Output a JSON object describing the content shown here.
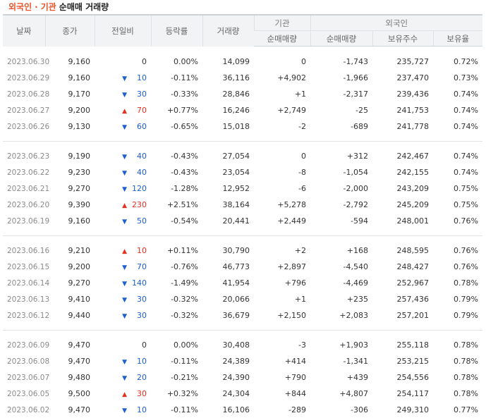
{
  "title": {
    "accent_1": "외국인",
    "separator": "·",
    "accent_2": "기관",
    "main": "순매매 거래량"
  },
  "headers": {
    "date": "날짜",
    "close": "종가",
    "change": "전일비",
    "rate": "등락률",
    "volume": "거래량",
    "institution_group": "기관",
    "foreign_group": "외국인",
    "inst_net": "순매매량",
    "foreign_net": "순매매량",
    "holdings": "보유주수",
    "holding_ratio": "보유율"
  },
  "colors": {
    "up": "#e4311f",
    "down": "#1c5fd1",
    "title_accent": "#e8542a"
  },
  "rows": [
    {
      "date": "2023.06.30",
      "close": "9,160",
      "dir": "none",
      "change": "0",
      "rate": "0.00%",
      "volume": "14,099",
      "inst": "0",
      "foreign": "-1,743",
      "holdings": "235,727",
      "ratio": "0.72%"
    },
    {
      "date": "2023.06.29",
      "close": "9,160",
      "dir": "down",
      "change": "10",
      "rate": "-0.11%",
      "volume": "36,116",
      "inst": "+4,902",
      "foreign": "-1,966",
      "holdings": "237,470",
      "ratio": "0.73%"
    },
    {
      "date": "2023.06.28",
      "close": "9,170",
      "dir": "down",
      "change": "30",
      "rate": "-0.33%",
      "volume": "28,846",
      "inst": "+1",
      "foreign": "-2,317",
      "holdings": "239,436",
      "ratio": "0.74%"
    },
    {
      "date": "2023.06.27",
      "close": "9,200",
      "dir": "up",
      "change": "70",
      "rate": "+0.77%",
      "volume": "16,246",
      "inst": "+2,749",
      "foreign": "-25",
      "holdings": "241,753",
      "ratio": "0.74%"
    },
    {
      "date": "2023.06.26",
      "close": "9,130",
      "dir": "down",
      "change": "60",
      "rate": "-0.65%",
      "volume": "15,018",
      "inst": "-2",
      "foreign": "-689",
      "holdings": "241,778",
      "ratio": "0.74%"
    },
    {
      "date": "2023.06.23",
      "close": "9,190",
      "dir": "down",
      "change": "40",
      "rate": "-0.43%",
      "volume": "27,054",
      "inst": "0",
      "foreign": "+312",
      "holdings": "242,467",
      "ratio": "0.74%"
    },
    {
      "date": "2023.06.22",
      "close": "9,230",
      "dir": "down",
      "change": "40",
      "rate": "-0.43%",
      "volume": "23,054",
      "inst": "-8",
      "foreign": "-1,054",
      "holdings": "242,155",
      "ratio": "0.74%"
    },
    {
      "date": "2023.06.21",
      "close": "9,270",
      "dir": "down",
      "change": "120",
      "rate": "-1.28%",
      "volume": "12,952",
      "inst": "-6",
      "foreign": "-2,000",
      "holdings": "243,209",
      "ratio": "0.75%"
    },
    {
      "date": "2023.06.20",
      "close": "9,390",
      "dir": "up",
      "change": "230",
      "rate": "+2.51%",
      "volume": "38,164",
      "inst": "+5,278",
      "foreign": "-2,792",
      "holdings": "245,209",
      "ratio": "0.75%"
    },
    {
      "date": "2023.06.19",
      "close": "9,160",
      "dir": "down",
      "change": "50",
      "rate": "-0.54%",
      "volume": "20,441",
      "inst": "+2,449",
      "foreign": "-594",
      "holdings": "248,001",
      "ratio": "0.76%"
    },
    {
      "date": "2023.06.16",
      "close": "9,210",
      "dir": "up",
      "change": "10",
      "rate": "+0.11%",
      "volume": "30,790",
      "inst": "+2",
      "foreign": "+168",
      "holdings": "248,595",
      "ratio": "0.76%"
    },
    {
      "date": "2023.06.15",
      "close": "9,200",
      "dir": "down",
      "change": "70",
      "rate": "-0.76%",
      "volume": "46,773",
      "inst": "+2,897",
      "foreign": "-4,540",
      "holdings": "248,427",
      "ratio": "0.76%"
    },
    {
      "date": "2023.06.14",
      "close": "9,270",
      "dir": "down",
      "change": "140",
      "rate": "-1.49%",
      "volume": "41,954",
      "inst": "+796",
      "foreign": "-4,469",
      "holdings": "252,967",
      "ratio": "0.78%"
    },
    {
      "date": "2023.06.13",
      "close": "9,410",
      "dir": "down",
      "change": "30",
      "rate": "-0.32%",
      "volume": "20,066",
      "inst": "+1",
      "foreign": "+235",
      "holdings": "257,436",
      "ratio": "0.79%"
    },
    {
      "date": "2023.06.12",
      "close": "9,440",
      "dir": "down",
      "change": "30",
      "rate": "-0.32%",
      "volume": "36,679",
      "inst": "+2,150",
      "foreign": "+2,083",
      "holdings": "257,201",
      "ratio": "0.79%"
    },
    {
      "date": "2023.06.09",
      "close": "9,470",
      "dir": "none",
      "change": "0",
      "rate": "0.00%",
      "volume": "30,408",
      "inst": "-3",
      "foreign": "+1,903",
      "holdings": "255,118",
      "ratio": "0.78%"
    },
    {
      "date": "2023.06.08",
      "close": "9,470",
      "dir": "down",
      "change": "10",
      "rate": "-0.11%",
      "volume": "24,389",
      "inst": "+414",
      "foreign": "-1,341",
      "holdings": "253,215",
      "ratio": "0.78%"
    },
    {
      "date": "2023.06.07",
      "close": "9,480",
      "dir": "down",
      "change": "20",
      "rate": "-0.21%",
      "volume": "24,390",
      "inst": "+790",
      "foreign": "+439",
      "holdings": "254,556",
      "ratio": "0.78%"
    },
    {
      "date": "2023.06.05",
      "close": "9,500",
      "dir": "up",
      "change": "30",
      "rate": "+0.32%",
      "volume": "24,304",
      "inst": "+844",
      "foreign": "+4,807",
      "holdings": "254,117",
      "ratio": "0.78%"
    },
    {
      "date": "2023.06.02",
      "close": "9,470",
      "dir": "down",
      "change": "10",
      "rate": "-0.11%",
      "volume": "16,106",
      "inst": "-289",
      "foreign": "-306",
      "holdings": "249,310",
      "ratio": "0.77%"
    }
  ]
}
